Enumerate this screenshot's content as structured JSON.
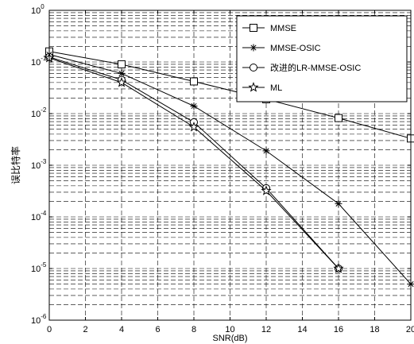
{
  "chart_data": {
    "type": "line",
    "title": "",
    "xlabel": "SNR(dB)",
    "ylabel": "误比特率",
    "xlim": [
      0,
      20
    ],
    "ylim": [
      1e-06,
      1
    ],
    "yscale": "log",
    "grid": true,
    "legend_position": "top-right",
    "x_ticks": [
      "0",
      "2",
      "4",
      "6",
      "8",
      "10",
      "12",
      "14",
      "16",
      "18",
      "20"
    ],
    "y_ticks": [
      {
        "base": "10",
        "exp": "-6"
      },
      {
        "base": "10",
        "exp": "-5"
      },
      {
        "base": "10",
        "exp": "-4"
      },
      {
        "base": "10",
        "exp": "-3"
      },
      {
        "base": "10",
        "exp": "-2"
      },
      {
        "base": "10",
        "exp": "-1"
      },
      {
        "base": "10",
        "exp": "0"
      }
    ],
    "series": [
      {
        "name": "MMSE",
        "marker": "square",
        "color": "#000000",
        "x": [
          0,
          4,
          8,
          12,
          16,
          20
        ],
        "y": [
          0.16,
          0.09,
          0.042,
          0.019,
          0.0082,
          0.0033
        ]
      },
      {
        "name": "MMSE-OSIC",
        "marker": "star",
        "color": "#000000",
        "x": [
          0,
          4,
          8,
          12,
          16,
          20
        ],
        "y": [
          0.14,
          0.06,
          0.014,
          0.0019,
          0.00018,
          5e-06
        ]
      },
      {
        "name": "改进的LR-MMSE-OSIC",
        "marker": "circle",
        "color": "#000000",
        "x": [
          0,
          4,
          8,
          12,
          16
        ],
        "y": [
          0.125,
          0.045,
          0.0068,
          0.00036,
          1e-05
        ]
      },
      {
        "name": "ML",
        "marker": "pentagram",
        "color": "#000000",
        "x": [
          0,
          4,
          8,
          12,
          16
        ],
        "y": [
          0.12,
          0.04,
          0.0055,
          0.00032,
          1e-05
        ]
      }
    ]
  }
}
